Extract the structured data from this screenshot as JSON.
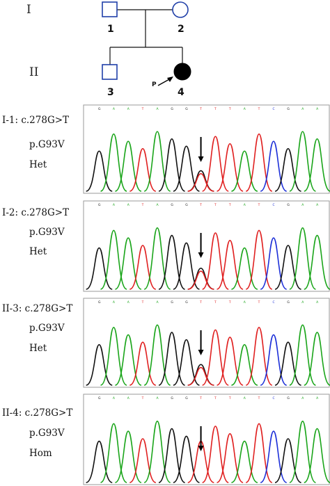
{
  "pedigree": {
    "generations": [
      "I",
      "II"
    ],
    "individuals": [
      {
        "id": "1",
        "sex": "male",
        "affected": false
      },
      {
        "id": "2",
        "sex": "female",
        "affected": false
      },
      {
        "id": "3",
        "sex": "male",
        "affected": false
      },
      {
        "id": "4",
        "sex": "female",
        "affected": true,
        "proband": true
      }
    ],
    "proband_marker": "P"
  },
  "chromatograms": [
    {
      "label": "I-1: c.278G>T",
      "protein": "p.G93V",
      "zygosity": "Het"
    },
    {
      "label": "I-2: c.278G>T",
      "protein": "p.G93V",
      "zygosity": "Het"
    },
    {
      "label": "II-3: c.278G>T",
      "protein": "p.G93V",
      "zygosity": "Het"
    },
    {
      "label": "II-4: c.278G>T",
      "protein": "p.G93V",
      "zygosity": "Hom"
    }
  ],
  "sequence": {
    "reference_bases": [
      "G",
      "A",
      "A",
      "T",
      "A",
      "G",
      "G",
      "T",
      "T",
      "T",
      "A",
      "T",
      "C",
      "G",
      "A",
      "A"
    ],
    "base_colors": {
      "A": "#1aa51a",
      "T": "#e02020",
      "G": "#111111",
      "C": "#1c2fd8"
    }
  }
}
